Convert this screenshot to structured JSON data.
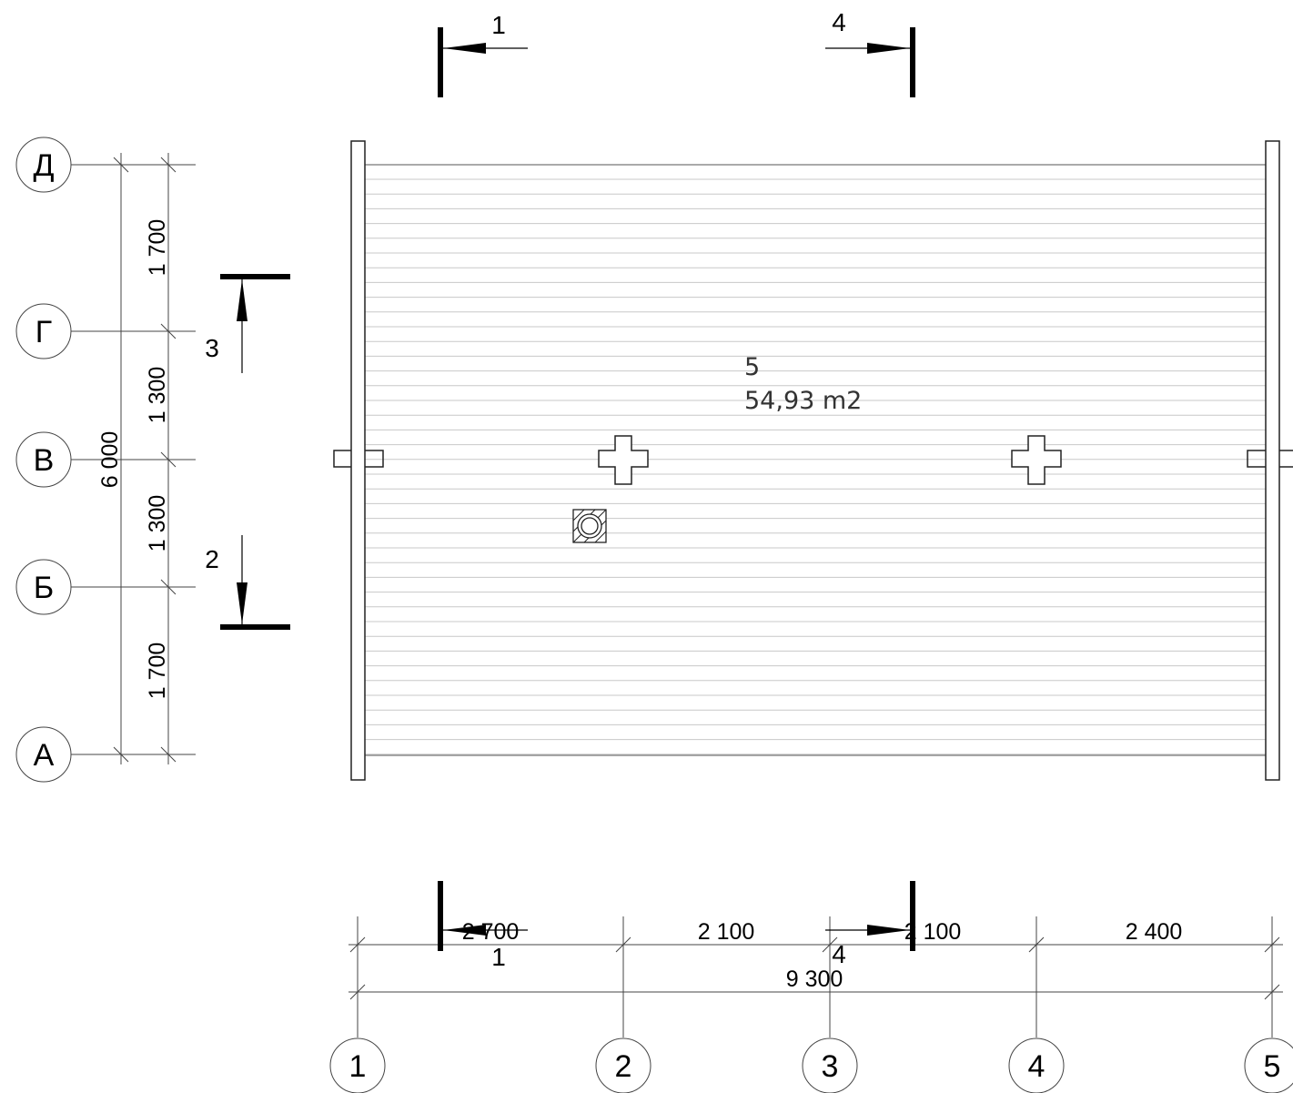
{
  "drawing": {
    "grid_axes": {
      "rows": [
        "Д",
        "Г",
        "В",
        "Б",
        "А"
      ],
      "columns": [
        "1",
        "2",
        "3",
        "4",
        "5"
      ]
    },
    "dimensions": {
      "vertical_segments": [
        "1 700",
        "1 300",
        "1 300",
        "1 700"
      ],
      "vertical_total": "6 000",
      "horizontal_segments": [
        "2 700",
        "2 100",
        "2 100",
        "2 400"
      ],
      "horizontal_total": "9 300"
    },
    "sections": {
      "top_left": "1",
      "top_right": "4",
      "bottom_left": "1",
      "bottom_right": "4",
      "left_upper": "3",
      "left_lower": "2"
    },
    "room": {
      "number": "5",
      "area": "54,93 m2"
    }
  }
}
